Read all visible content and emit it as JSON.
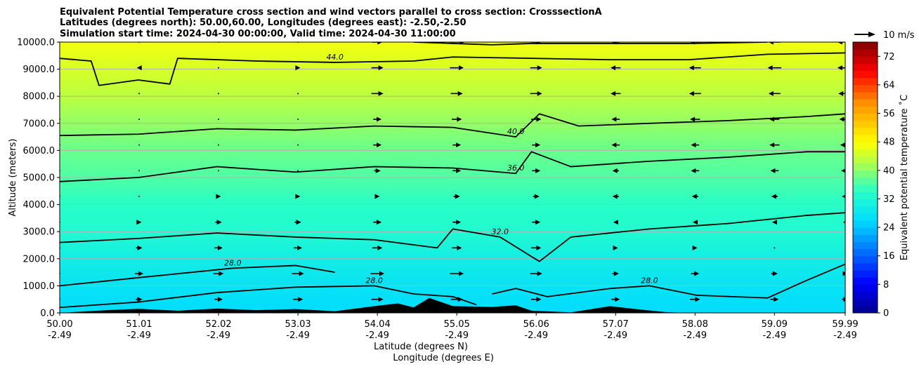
{
  "chart_data": {
    "type": "heatmap",
    "title_lines": [
      "Equivalent Potential Temperature cross section and wind vectors parallel to cross section: CrosssectionA",
      "Latitudes (degrees north): 50.00,60.00, Longitudes (degrees east): -2.50,-2.50",
      "Simulation start time: 2024-04-30 00:00:00, Valid time: 2024-04-30 11:00:00"
    ],
    "xlabel_lat": "Latitude (degrees N)",
    "xlabel_lon": "Longitude (degrees E)",
    "ylabel": "Altitude (meters)",
    "x_ticks": [
      {
        "lat": "50.00",
        "lon": "-2.49"
      },
      {
        "lat": "51.01",
        "lon": "-2.49"
      },
      {
        "lat": "52.02",
        "lon": "-2.49"
      },
      {
        "lat": "53.03",
        "lon": "-2.49"
      },
      {
        "lat": "54.04",
        "lon": "-2.49"
      },
      {
        "lat": "55.05",
        "lon": "-2.49"
      },
      {
        "lat": "56.06",
        "lon": "-2.49"
      },
      {
        "lat": "57.07",
        "lon": "-2.49"
      },
      {
        "lat": "58.08",
        "lon": "-2.49"
      },
      {
        "lat": "59.09",
        "lon": "-2.49"
      },
      {
        "lat": "59.99",
        "lon": "-2.49"
      }
    ],
    "x_range": [
      50.0,
      59.99
    ],
    "y_ticks": [
      "0.0",
      "1000.0",
      "2000.0",
      "3000.0",
      "4000.0",
      "5000.0",
      "6000.0",
      "7000.0",
      "8000.0",
      "9000.0",
      "10000.0"
    ],
    "y_range": [
      0,
      10000
    ],
    "colorbar": {
      "label": "Equivalent potential temperature ˚C",
      "ticks": [
        "0",
        "8",
        "16",
        "24",
        "32",
        "40",
        "48",
        "56",
        "64",
        "72"
      ],
      "range": [
        0,
        76
      ]
    },
    "quiver_key": "10 m/s",
    "profile": [
      {
        "z": 0,
        "theta": 26
      },
      {
        "z": 1000,
        "theta": 27.5
      },
      {
        "z": 2000,
        "theta": 30
      },
      {
        "z": 3000,
        "theta": 33
      },
      {
        "z": 4000,
        "theta": 34
      },
      {
        "z": 5000,
        "theta": 36.5
      },
      {
        "z": 6000,
        "theta": 38
      },
      {
        "z": 7000,
        "theta": 40.5
      },
      {
        "z": 8000,
        "theta": 43
      },
      {
        "z": 9000,
        "theta": 45
      },
      {
        "z": 10000,
        "theta": 47
      }
    ],
    "contours": [
      {
        "level": "28.0",
        "points": [
          [
            50.0,
            1000
          ],
          [
            51.0,
            1300
          ],
          [
            52.2,
            1650
          ],
          [
            53.0,
            1750
          ],
          [
            53.5,
            1500
          ]
        ]
      },
      {
        "level": "28.0",
        "points": [
          [
            50.0,
            200
          ],
          [
            51.0,
            400
          ],
          [
            52.0,
            750
          ],
          [
            53.0,
            950
          ],
          [
            54.0,
            1000
          ],
          [
            54.5,
            700
          ],
          [
            55.0,
            600
          ],
          [
            55.3,
            300
          ]
        ]
      },
      {
        "level": "28.0",
        "points": [
          [
            55.5,
            700
          ],
          [
            55.8,
            900
          ],
          [
            56.2,
            600
          ],
          [
            57.0,
            900
          ],
          [
            57.5,
            1000
          ],
          [
            58.1,
            650
          ],
          [
            59.0,
            550
          ],
          [
            59.5,
            1200
          ],
          [
            59.99,
            1800
          ]
        ]
      },
      {
        "level": "32.0",
        "points": [
          [
            50.0,
            2600
          ],
          [
            51.0,
            2750
          ],
          [
            52.0,
            2950
          ],
          [
            53.0,
            2800
          ],
          [
            54.0,
            2700
          ],
          [
            54.8,
            2400
          ],
          [
            55.0,
            3100
          ],
          [
            55.6,
            2800
          ],
          [
            56.1,
            1900
          ],
          [
            56.5,
            2800
          ],
          [
            57.5,
            3100
          ],
          [
            58.5,
            3300
          ],
          [
            59.5,
            3600
          ],
          [
            59.99,
            3700
          ]
        ]
      },
      {
        "level": "36.0",
        "points": [
          [
            50.0,
            4850
          ],
          [
            51.0,
            5000
          ],
          [
            52.0,
            5400
          ],
          [
            53.0,
            5200
          ],
          [
            54.0,
            5400
          ],
          [
            55.0,
            5350
          ],
          [
            55.8,
            5150
          ],
          [
            56.0,
            5950
          ],
          [
            56.5,
            5400
          ],
          [
            57.5,
            5600
          ],
          [
            58.5,
            5750
          ],
          [
            59.5,
            5950
          ],
          [
            59.99,
            5950
          ]
        ]
      },
      {
        "level": "40.0",
        "points": [
          [
            50.0,
            6550
          ],
          [
            51.0,
            6600
          ],
          [
            52.0,
            6800
          ],
          [
            53.0,
            6750
          ],
          [
            54.0,
            6900
          ],
          [
            55.0,
            6850
          ],
          [
            55.8,
            6500
          ],
          [
            56.1,
            7350
          ],
          [
            56.6,
            6900
          ],
          [
            57.5,
            7000
          ],
          [
            58.5,
            7100
          ],
          [
            59.5,
            7250
          ],
          [
            59.99,
            7350
          ]
        ]
      },
      {
        "level": "44.0",
        "points": [
          [
            50.0,
            9400
          ],
          [
            50.4,
            9300
          ],
          [
            50.5,
            8400
          ],
          [
            51.0,
            8600
          ],
          [
            51.4,
            8450
          ],
          [
            51.5,
            9400
          ],
          [
            52.5,
            9300
          ],
          [
            53.5,
            9250
          ],
          [
            54.5,
            9300
          ],
          [
            55.0,
            9450
          ],
          [
            56.0,
            9400
          ],
          [
            57.0,
            9350
          ],
          [
            58.0,
            9350
          ],
          [
            59.0,
            9550
          ],
          [
            59.99,
            9600
          ]
        ]
      },
      {
        "level": "48.0",
        "points": [
          [
            54.5,
            10000
          ],
          [
            55.0,
            9950
          ],
          [
            55.5,
            9900
          ],
          [
            56.0,
            9950
          ],
          [
            57.0,
            9950
          ],
          [
            58.0,
            9950
          ],
          [
            59.0,
            10000
          ]
        ]
      }
    ],
    "terrain": [
      {
        "lat": 50.0,
        "z": 0
      },
      {
        "lat": 50.6,
        "z": 100
      },
      {
        "lat": 51.0,
        "z": 150
      },
      {
        "lat": 51.5,
        "z": 80
      },
      {
        "lat": 52.0,
        "z": 160
      },
      {
        "lat": 52.5,
        "z": 100
      },
      {
        "lat": 53.0,
        "z": 140
      },
      {
        "lat": 53.5,
        "z": 60
      },
      {
        "lat": 54.0,
        "z": 250
      },
      {
        "lat": 54.3,
        "z": 350
      },
      {
        "lat": 54.5,
        "z": 200
      },
      {
        "lat": 54.7,
        "z": 550
      },
      {
        "lat": 55.0,
        "z": 250
      },
      {
        "lat": 55.5,
        "z": 220
      },
      {
        "lat": 55.8,
        "z": 280
      },
      {
        "lat": 56.0,
        "z": 80
      },
      {
        "lat": 56.5,
        "z": 20
      },
      {
        "lat": 57.0,
        "z": 250
      },
      {
        "lat": 57.3,
        "z": 150
      },
      {
        "lat": 57.7,
        "z": 30
      },
      {
        "lat": 58.0,
        "z": 0
      },
      {
        "lat": 59.99,
        "z": 0
      }
    ],
    "wind_u": [
      {
        "lat": 50.0,
        "u": [
          0,
          0,
          0,
          0,
          0,
          0,
          0,
          0,
          0,
          0,
          0
        ]
      },
      {
        "lat": 51.01,
        "u": [
          2,
          3,
          2,
          1,
          0,
          0,
          0,
          0,
          0,
          -1,
          0
        ]
      },
      {
        "lat": 52.02,
        "u": [
          3,
          4,
          3,
          2,
          1,
          0,
          0,
          0,
          0,
          0,
          0
        ]
      },
      {
        "lat": 53.03,
        "u": [
          4,
          5,
          3,
          2,
          1,
          0,
          0,
          0,
          0,
          1,
          0
        ]
      },
      {
        "lat": 54.04,
        "u": [
          5,
          6,
          4,
          3,
          1,
          2,
          3,
          3,
          5,
          5,
          4
        ]
      },
      {
        "lat": 55.05,
        "u": [
          5,
          6,
          4,
          3,
          2,
          3,
          3,
          4,
          5,
          6,
          7
        ]
      },
      {
        "lat": 56.06,
        "u": [
          4,
          5,
          4,
          3,
          2,
          3,
          3,
          4,
          5,
          5,
          4
        ]
      },
      {
        "lat": 57.07,
        "u": [
          3,
          2,
          1,
          -1,
          -2,
          -2,
          -3,
          -3,
          -4,
          -4,
          -3
        ]
      },
      {
        "lat": 58.08,
        "u": [
          4,
          3,
          1,
          -1,
          -2,
          -3,
          -3,
          -4,
          -5,
          -5,
          -4
        ]
      },
      {
        "lat": 59.09,
        "u": [
          3,
          2,
          0,
          -1,
          -2,
          -3,
          -4,
          -4,
          -5,
          -6,
          -5
        ]
      },
      {
        "lat": 59.99,
        "u": [
          2,
          1,
          0,
          -1,
          -2,
          -3,
          -4,
          -5,
          -6,
          -7,
          -7
        ]
      }
    ]
  }
}
